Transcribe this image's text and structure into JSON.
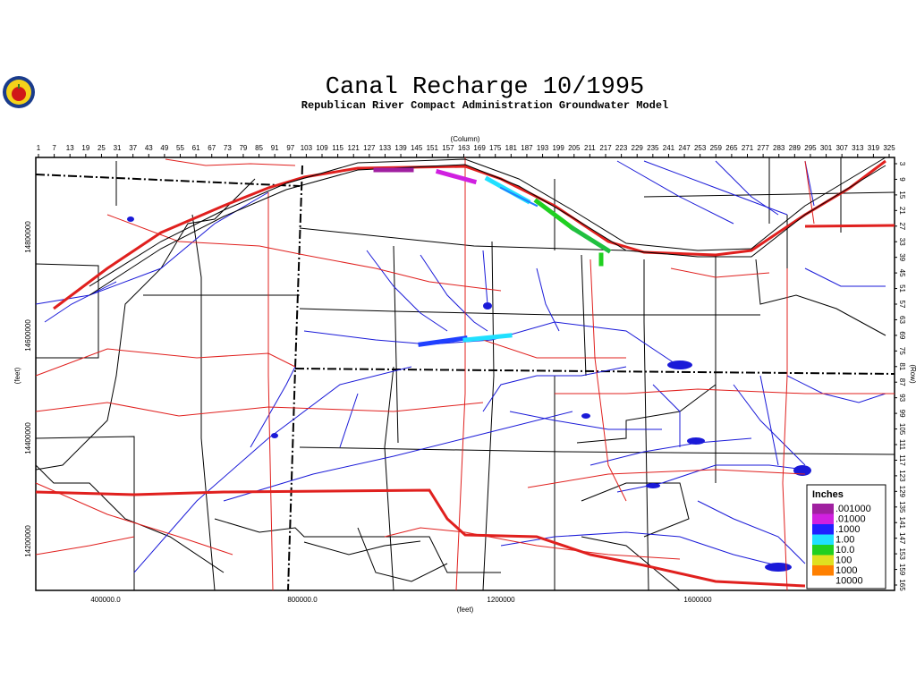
{
  "header": {
    "title": "Canal Recharge 10/1995",
    "subtitle": "Republican River Compact Administration Groundwater Model"
  },
  "axes": {
    "column_title": "(Column)",
    "row_title": "(Row)",
    "columns": [
      "1",
      "7",
      "13",
      "19",
      "25",
      "31",
      "37",
      "43",
      "49",
      "55",
      "61",
      "67",
      "73",
      "79",
      "85",
      "91",
      "97",
      "103",
      "109",
      "115",
      "121",
      "127",
      "133",
      "139",
      "145",
      "151",
      "157",
      "163",
      "169",
      "175",
      "181",
      "187",
      "193",
      "199",
      "205",
      "211",
      "217",
      "223",
      "229",
      "235",
      "241",
      "247",
      "253",
      "259",
      "265",
      "271",
      "277",
      "283",
      "289",
      "295",
      "301",
      "307",
      "313",
      "319",
      "325"
    ],
    "rows": [
      "3",
      "9",
      "15",
      "21",
      "27",
      "33",
      "39",
      "45",
      "51",
      "57",
      "63",
      "69",
      "75",
      "81",
      "87",
      "93",
      "99",
      "105",
      "111",
      "117",
      "123",
      "129",
      "135",
      "141",
      "147",
      "153",
      "159",
      "165"
    ],
    "y_title": "(feet)",
    "y_labels": [
      "14800000",
      "14600000",
      "14400000",
      "14200000"
    ],
    "x_title": "(feet)",
    "x_labels": [
      "400000.0",
      "800000.0",
      "1200000",
      "1600000"
    ]
  },
  "legend": {
    "title": "Inches",
    "entries": [
      {
        "label": ".001000",
        "color": "#a020a0"
      },
      {
        "label": ".01000",
        "color": "#d020e0"
      },
      {
        "label": ".1000",
        "color": "#2020ff"
      },
      {
        "label": "1.00",
        "color": "#20e0ff"
      },
      {
        "label": "10.0",
        "color": "#20d020"
      },
      {
        "label": "100",
        "color": "#e0e020"
      },
      {
        "label": "1000",
        "color": "#ff8000"
      },
      {
        "label": "10000",
        "color": "#ffffff"
      }
    ]
  }
}
